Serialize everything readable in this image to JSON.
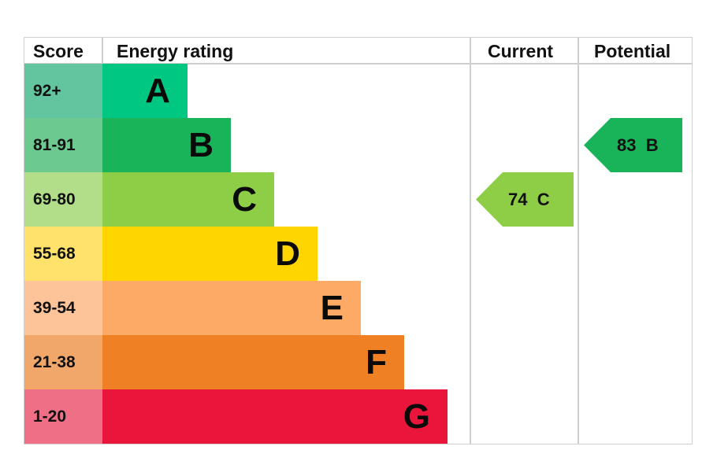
{
  "headers": {
    "score": "Score",
    "energy_rating": "Energy rating",
    "current": "Current",
    "potential": "Potential"
  },
  "bands": [
    {
      "score": "92+",
      "letter": "A",
      "bar_color": "#00c781",
      "score_color": "#63c5a0"
    },
    {
      "score": "81-91",
      "letter": "B",
      "bar_color": "#19b459",
      "score_color": "#6cc990"
    },
    {
      "score": "69-80",
      "letter": "C",
      "bar_color": "#8dce46",
      "score_color": "#b2de8a"
    },
    {
      "score": "55-68",
      "letter": "D",
      "bar_color": "#ffd500",
      "score_color": "#ffe26b"
    },
    {
      "score": "39-54",
      "letter": "E",
      "bar_color": "#fcaa65",
      "score_color": "#fdc49a"
    },
    {
      "score": "21-38",
      "letter": "F",
      "bar_color": "#ef8023",
      "score_color": "#f2a76a"
    },
    {
      "score": "1-20",
      "letter": "G",
      "bar_color": "#e9153b",
      "score_color": "#ee6f86"
    }
  ],
  "current": {
    "value": "74",
    "band": "C",
    "label": "74  C",
    "color": "#8dce46"
  },
  "potential": {
    "value": "83",
    "band": "B",
    "label": "83  B",
    "color": "#19b459"
  },
  "chart_data": {
    "type": "bar",
    "title": "Energy rating",
    "categories": [
      "A",
      "B",
      "C",
      "D",
      "E",
      "F",
      "G"
    ],
    "score_ranges": [
      "92+",
      "81-91",
      "69-80",
      "55-68",
      "39-54",
      "21-38",
      "1-20"
    ],
    "colors": [
      "#00c781",
      "#19b459",
      "#8dce46",
      "#ffd500",
      "#fcaa65",
      "#ef8023",
      "#e9153b"
    ],
    "columns": [
      "Score",
      "Energy rating",
      "Current",
      "Potential"
    ],
    "series": [
      {
        "name": "Current",
        "value": 74,
        "band": "C"
      },
      {
        "name": "Potential",
        "value": 83,
        "band": "B"
      }
    ],
    "orientation": "horizontal",
    "grid": false,
    "legend": "none"
  }
}
